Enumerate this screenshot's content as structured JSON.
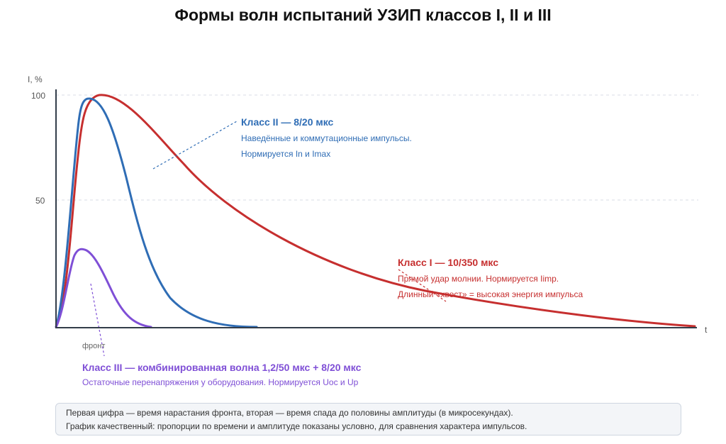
{
  "title": "Формы волн испытаний УЗИП классов I, II и III",
  "colors": {
    "class_i": "#c62f2f",
    "class_ii": "#2f6db5",
    "class_iii": "#7f4fd6",
    "axis": "#333d4a",
    "grid": "#d9dee6"
  },
  "axes": {
    "y_label": "I, %",
    "x_label": "t",
    "y_ticks": [
      "50",
      "100"
    ]
  },
  "annotations": {
    "class_ii": {
      "heading": "Класс II — 8/20 мкс",
      "line1": "Наведённые и коммутационные импульсы.",
      "line2": "Нормируется In и Imax"
    },
    "class_i": {
      "heading": "Класс I — 10/350 мкс",
      "line1": "Прямой удар молнии. Нормируется Iimp.",
      "line2": "Длинный «хвост» = высокая энергия импульса"
    },
    "class_iii": {
      "heading": "Класс III — комбинированная волна 1,2/50 мкс + 8/20 мкс",
      "line1": "Остаточные перенапряжения у оборудования. Нормируется Uoc и Up"
    }
  },
  "front_label": "фронт",
  "footnote": {
    "line1": "Первая цифра — время нарастания фронта, вторая — время спада до половины амплитуды (в микросекундах).",
    "line2": "График качественный: пропорции по времени и амплитуде показаны условно, для сравнения характера импульсов."
  }
}
